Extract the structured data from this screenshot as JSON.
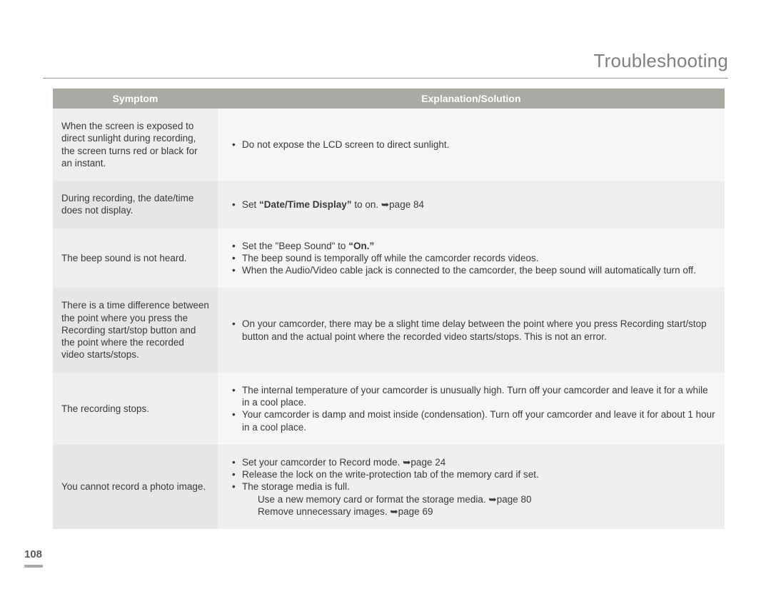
{
  "page": {
    "title": "Troubleshooting",
    "page_number": "108"
  },
  "colors": {
    "header_bg": "#aba9a4",
    "header_fg": "#ffffff",
    "row_odd_sym": "#eeeeee",
    "row_odd_sol": "#f6f6f6",
    "row_even_sym": "#e6e6e6",
    "row_even_sol": "#efefef",
    "text": "#3a3a3a",
    "title": "#808080",
    "rule": "#9a9a9a"
  },
  "table": {
    "headers": {
      "symptom": "Symptom",
      "solution": "Explanation/Solution"
    },
    "rows": [
      {
        "symptom": "When the screen is exposed to direct sunlight during recording, the screen turns red or black for an instant.",
        "solutions": [
          {
            "text": "Do not expose the LCD screen to direct sunlight."
          }
        ]
      },
      {
        "symptom": "During recording, the date/time does not display.",
        "solutions": [
          {
            "prefix": "Set ",
            "bold": "“Date/Time Display”",
            "suffix": " to on. ",
            "arrow": true,
            "page_ref": "page 84"
          }
        ]
      },
      {
        "symptom": "The beep sound is not heard.",
        "solutions": [
          {
            "prefix": "Set the \"Beep Sound\" to ",
            "bold": "“On.”"
          },
          {
            "text": "The beep sound is temporally off while the camcorder records videos."
          },
          {
            "text": "When the Audio/Video cable jack is connected to the camcorder, the beep sound will automatically turn off."
          }
        ]
      },
      {
        "symptom": "There is a time difference between the point where you press the Recording start/stop button and the point where the recorded video starts/stops.",
        "solutions": [
          {
            "text": "On your camcorder, there may be a slight time delay between the point where you press Recording start/stop button and the actual point where the recorded video starts/stops. This is not an error."
          }
        ]
      },
      {
        "symptom": "The recording stops.",
        "solutions": [
          {
            "text": "The internal temperature of your camcorder is unusually high. Turn off your camcorder and leave it for a while in a cool place."
          },
          {
            "text": "Your camcorder is damp and moist inside (condensation). Turn off your camcorder and leave it for about 1 hour in a cool place."
          }
        ]
      },
      {
        "symptom": "You cannot record a photo image.",
        "solutions": [
          {
            "prefix": "Set your camcorder to Record mode. ",
            "arrow": true,
            "page_ref": "page 24"
          },
          {
            "text": "Release the lock on the write-protection tab of the memory card if set."
          },
          {
            "text": "The storage media is full.",
            "sub": [
              {
                "prefix": "Use a new memory card or format the storage media. ",
                "arrow": true,
                "page_ref": "page 80"
              },
              {
                "prefix": "Remove unnecessary images. ",
                "arrow": true,
                "page_ref": "page 69"
              }
            ]
          }
        ]
      }
    ]
  },
  "glyphs": {
    "arrow": "➥"
  }
}
